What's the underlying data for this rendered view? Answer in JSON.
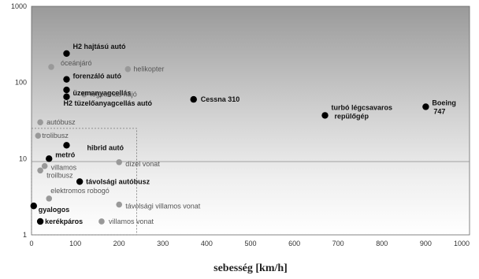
{
  "chart_data": {
    "type": "scatter",
    "title": "",
    "xlabel": "sebesség [km/h]",
    "ylabel": "",
    "xlim": [
      0,
      1000
    ],
    "ylim": [
      1,
      1000
    ],
    "y_scale": "log",
    "x_ticks": [
      "0",
      "100",
      "200",
      "300",
      "400",
      "500",
      "600",
      "700",
      "800",
      "900",
      "1000"
    ],
    "y_ticks": [
      "1",
      "10",
      "100",
      "1000"
    ],
    "grid": "horizontal at 10",
    "background": "gradient dark top to white bottom",
    "highlight_box": {
      "x": [
        0,
        240
      ],
      "y": [
        1,
        25
      ]
    },
    "series": [
      {
        "color": "#000000",
        "points": [
          {
            "label": "H2 hajtású autó",
            "x": 80,
            "y": 240
          },
          {
            "label": "forenzáló autó",
            "x": 80,
            "y": 110
          },
          {
            "label": "üzemanyagcellás",
            "x": 80,
            "y": 80
          },
          {
            "label": "H2 tüzelőanyagcellás autó",
            "x": 80,
            "y": 65
          },
          {
            "label": "Cessna 310",
            "x": 370,
            "y": 60
          },
          {
            "label": "turbó légcsavaros repülőgép",
            "x": 670,
            "y": 37
          },
          {
            "label": "Boeing 747",
            "x": 900,
            "y": 48
          },
          {
            "label": "hibrid autó",
            "x": 80,
            "y": 15
          },
          {
            "label": "metró",
            "x": 40,
            "y": 10
          },
          {
            "label": "távolsági autóbusz",
            "x": 110,
            "y": 5
          },
          {
            "label": "gyalogos",
            "x": 5,
            "y": 2.4
          },
          {
            "label": "kerékpáros",
            "x": 20,
            "y": 1.5
          }
        ]
      },
      {
        "color": "#999999",
        "points": [
          {
            "label": "óceánjáró",
            "x": 45,
            "y": 160
          },
          {
            "label": "helikopter",
            "x": 220,
            "y": 150
          },
          {
            "label": "légpárnás hajó",
            "x": 120,
            "y": 70
          },
          {
            "label": "autóbusz",
            "x": 20,
            "y": 30
          },
          {
            "label": "trolibusz",
            "x": 15,
            "y": 20
          },
          {
            "label": "dízel vonat",
            "x": 200,
            "y": 9
          },
          {
            "label": "villamos",
            "x": 30,
            "y": 8
          },
          {
            "label": "troilbusz",
            "x": 20,
            "y": 7
          },
          {
            "label": "elektromos robogó",
            "x": 40,
            "y": 3
          },
          {
            "label": "távolsági villamos vonat",
            "x": 200,
            "y": 2.5
          },
          {
            "label": "villamos vonat",
            "x": 160,
            "y": 1.5
          }
        ]
      }
    ]
  }
}
